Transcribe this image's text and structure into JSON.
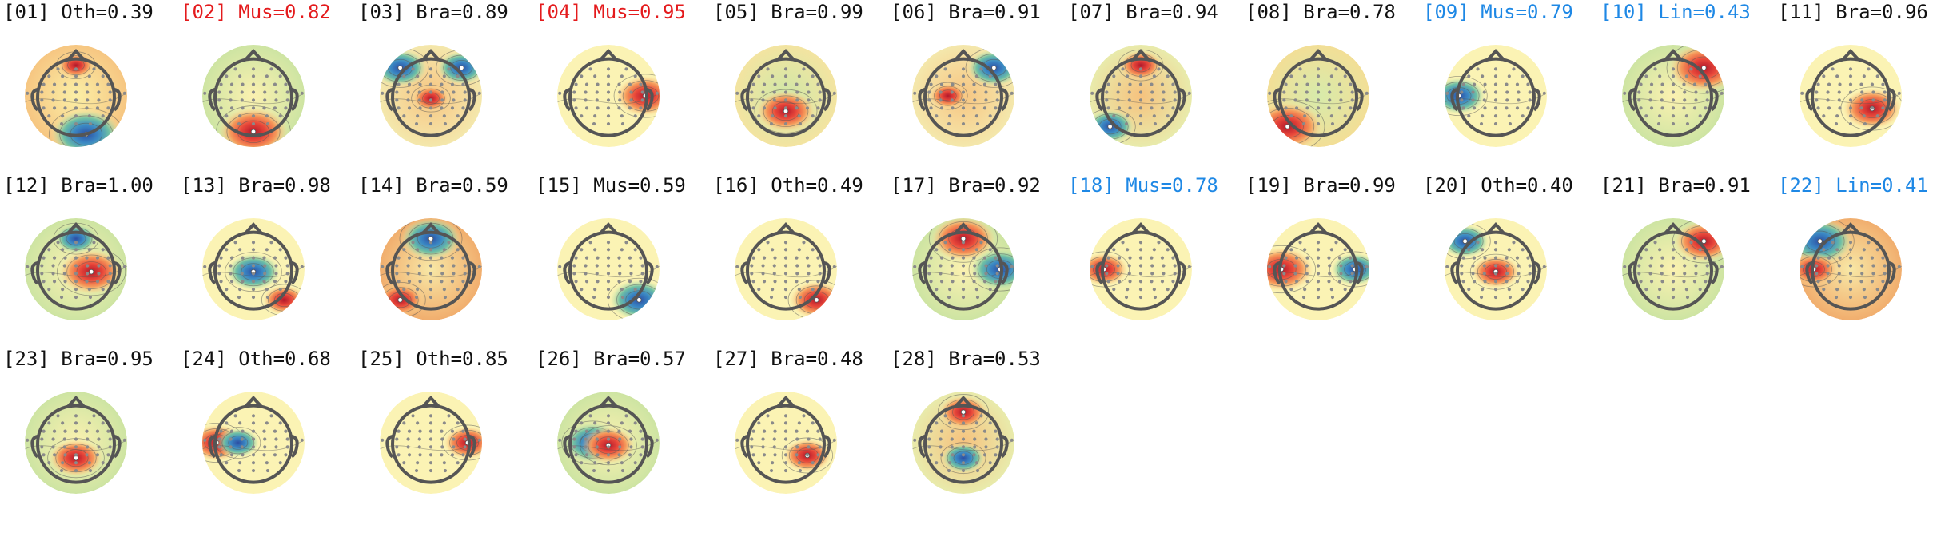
{
  "colors": {
    "muscle": "#e41a1c",
    "line_noise": "#1e88e5",
    "default": "#111111"
  },
  "components": [
    {
      "label": "[01] Oth=0.39",
      "tint": "default",
      "blobs": [
        {
          "at": "left-bottom",
          "hot": false,
          "s": 1.0
        },
        {
          "at": "top",
          "hot": true,
          "s": 0.4
        }
      ],
      "wash": "orange-left"
    },
    {
      "label": "[02] Mus=0.82",
      "tint": "muscle",
      "blobs": [
        {
          "at": "bottom",
          "hot": true,
          "s": 1.0
        }
      ],
      "wash": "green-edge"
    },
    {
      "label": "[03] Bra=0.89",
      "tint": "default",
      "blobs": [
        {
          "at": "top-left",
          "hot": false,
          "s": 0.7
        },
        {
          "at": "top-right",
          "hot": false,
          "s": 0.6
        },
        {
          "at": "center",
          "hot": true,
          "s": 0.4
        }
      ],
      "wash": "orange-center"
    },
    {
      "label": "[04] Mus=0.95",
      "tint": "muscle",
      "blobs": [
        {
          "at": "right",
          "hot": true,
          "s": 0.8
        }
      ],
      "wash": "yellow"
    },
    {
      "label": "[05] Bra=0.99",
      "tint": "default",
      "blobs": [
        {
          "at": "bottom-center",
          "hot": true,
          "s": 0.8
        }
      ],
      "wash": "green-top"
    },
    {
      "label": "[06] Bra=0.91",
      "tint": "default",
      "blobs": [
        {
          "at": "top-right",
          "hot": false,
          "s": 0.7
        },
        {
          "at": "center-left",
          "hot": true,
          "s": 0.4
        }
      ],
      "wash": "orange-center"
    },
    {
      "label": "[07] Bra=0.94",
      "tint": "default",
      "blobs": [
        {
          "at": "bottom-left",
          "hot": false,
          "s": 0.6
        },
        {
          "at": "top",
          "hot": true,
          "s": 0.5
        }
      ],
      "wash": "orange-top"
    },
    {
      "label": "[08] Bra=0.78",
      "tint": "default",
      "blobs": [
        {
          "at": "bottom-left",
          "hot": true,
          "s": 1.0
        }
      ],
      "wash": "green-center"
    },
    {
      "label": "[09] Mus=0.79",
      "tint": "line_noise",
      "blobs": [
        {
          "at": "left",
          "hot": false,
          "s": 0.7
        }
      ],
      "wash": "yellow"
    },
    {
      "label": "[10] Lin=0.43",
      "tint": "line_noise",
      "blobs": [
        {
          "at": "top-right",
          "hot": true,
          "s": 1.0
        }
      ],
      "wash": "green-edge"
    },
    {
      "label": "[11] Bra=0.96",
      "tint": "default",
      "blobs": [
        {
          "at": "right-center",
          "hot": true,
          "s": 0.8
        }
      ],
      "wash": "yellow"
    },
    {
      "label": "[12] Bra=1.00",
      "tint": "default",
      "blobs": [
        {
          "at": "center-right",
          "hot": true,
          "s": 0.9
        },
        {
          "at": "top",
          "hot": false,
          "s": 0.5
        }
      ],
      "wash": "green-edge"
    },
    {
      "label": "[13] Bra=0.98",
      "tint": "default",
      "blobs": [
        {
          "at": "center",
          "hot": false,
          "s": 0.7
        },
        {
          "at": "bottom-right",
          "hot": true,
          "s": 0.5
        }
      ],
      "wash": "yellow"
    },
    {
      "label": "[14] Bra=0.59",
      "tint": "default",
      "blobs": [
        {
          "at": "top",
          "hot": false,
          "s": 0.8
        },
        {
          "at": "bottom-left",
          "hot": true,
          "s": 0.6
        }
      ],
      "wash": "orange-bottom"
    },
    {
      "label": "[15] Mus=0.59",
      "tint": "default",
      "blobs": [
        {
          "at": "bottom-right",
          "hot": false,
          "s": 0.8
        }
      ],
      "wash": "yellow"
    },
    {
      "label": "[16] Oth=0.49",
      "tint": "default",
      "blobs": [
        {
          "at": "bottom-right",
          "hot": true,
          "s": 0.7
        }
      ],
      "wash": "yellow"
    },
    {
      "label": "[17] Bra=0.92",
      "tint": "default",
      "blobs": [
        {
          "at": "top",
          "hot": true,
          "s": 0.9
        },
        {
          "at": "right",
          "hot": false,
          "s": 0.8
        }
      ],
      "wash": "green-edge"
    },
    {
      "label": "[18] Mus=0.78",
      "tint": "line_noise",
      "blobs": [
        {
          "at": "left",
          "hot": true,
          "s": 0.6
        }
      ],
      "wash": "yellow"
    },
    {
      "label": "[19] Bra=0.99",
      "tint": "default",
      "blobs": [
        {
          "at": "left",
          "hot": true,
          "s": 0.9
        },
        {
          "at": "right",
          "hot": false,
          "s": 0.6
        }
      ],
      "wash": "yellow"
    },
    {
      "label": "[20] Oth=0.40",
      "tint": "default",
      "blobs": [
        {
          "at": "top-left",
          "hot": false,
          "s": 0.6
        },
        {
          "at": "center",
          "hot": true,
          "s": 0.6
        }
      ],
      "wash": "yellow"
    },
    {
      "label": "[21] Bra=0.91",
      "tint": "default",
      "blobs": [
        {
          "at": "top-right",
          "hot": true,
          "s": 0.8
        }
      ],
      "wash": "green-edge"
    },
    {
      "label": "[22] Lin=0.41",
      "tint": "line_noise",
      "blobs": [
        {
          "at": "top-left",
          "hot": false,
          "s": 0.9
        },
        {
          "at": "left",
          "hot": true,
          "s": 0.6
        }
      ],
      "wash": "orange-bottom"
    },
    {
      "label": "[23] Bra=0.95",
      "tint": "default",
      "blobs": [
        {
          "at": "bottom-center",
          "hot": true,
          "s": 0.7
        }
      ],
      "wash": "green-edge"
    },
    {
      "label": "[24] Oth=0.68",
      "tint": "default",
      "blobs": [
        {
          "at": "left",
          "hot": true,
          "s": 0.7
        },
        {
          "at": "center-left",
          "hot": false,
          "s": 0.5
        }
      ],
      "wash": "yellow"
    },
    {
      "label": "[25] Oth=0.85",
      "tint": "default",
      "blobs": [
        {
          "at": "right",
          "hot": true,
          "s": 0.6
        }
      ],
      "wash": "yellow"
    },
    {
      "label": "[26] Bra=0.57",
      "tint": "default",
      "blobs": [
        {
          "at": "center-left",
          "hot": false,
          "s": 0.8
        },
        {
          "at": "center",
          "hot": true,
          "s": 0.7
        }
      ],
      "wash": "green-edge"
    },
    {
      "label": "[27] Bra=0.48",
      "tint": "default",
      "blobs": [
        {
          "at": "right-center",
          "hot": true,
          "s": 0.6
        }
      ],
      "wash": "yellow"
    },
    {
      "label": "[28] Bra=0.53",
      "tint": "default",
      "blobs": [
        {
          "at": "bottom-center",
          "hot": false,
          "s": 0.5
        },
        {
          "at": "top",
          "hot": true,
          "s": 0.6
        }
      ],
      "wash": "orange-top"
    }
  ]
}
